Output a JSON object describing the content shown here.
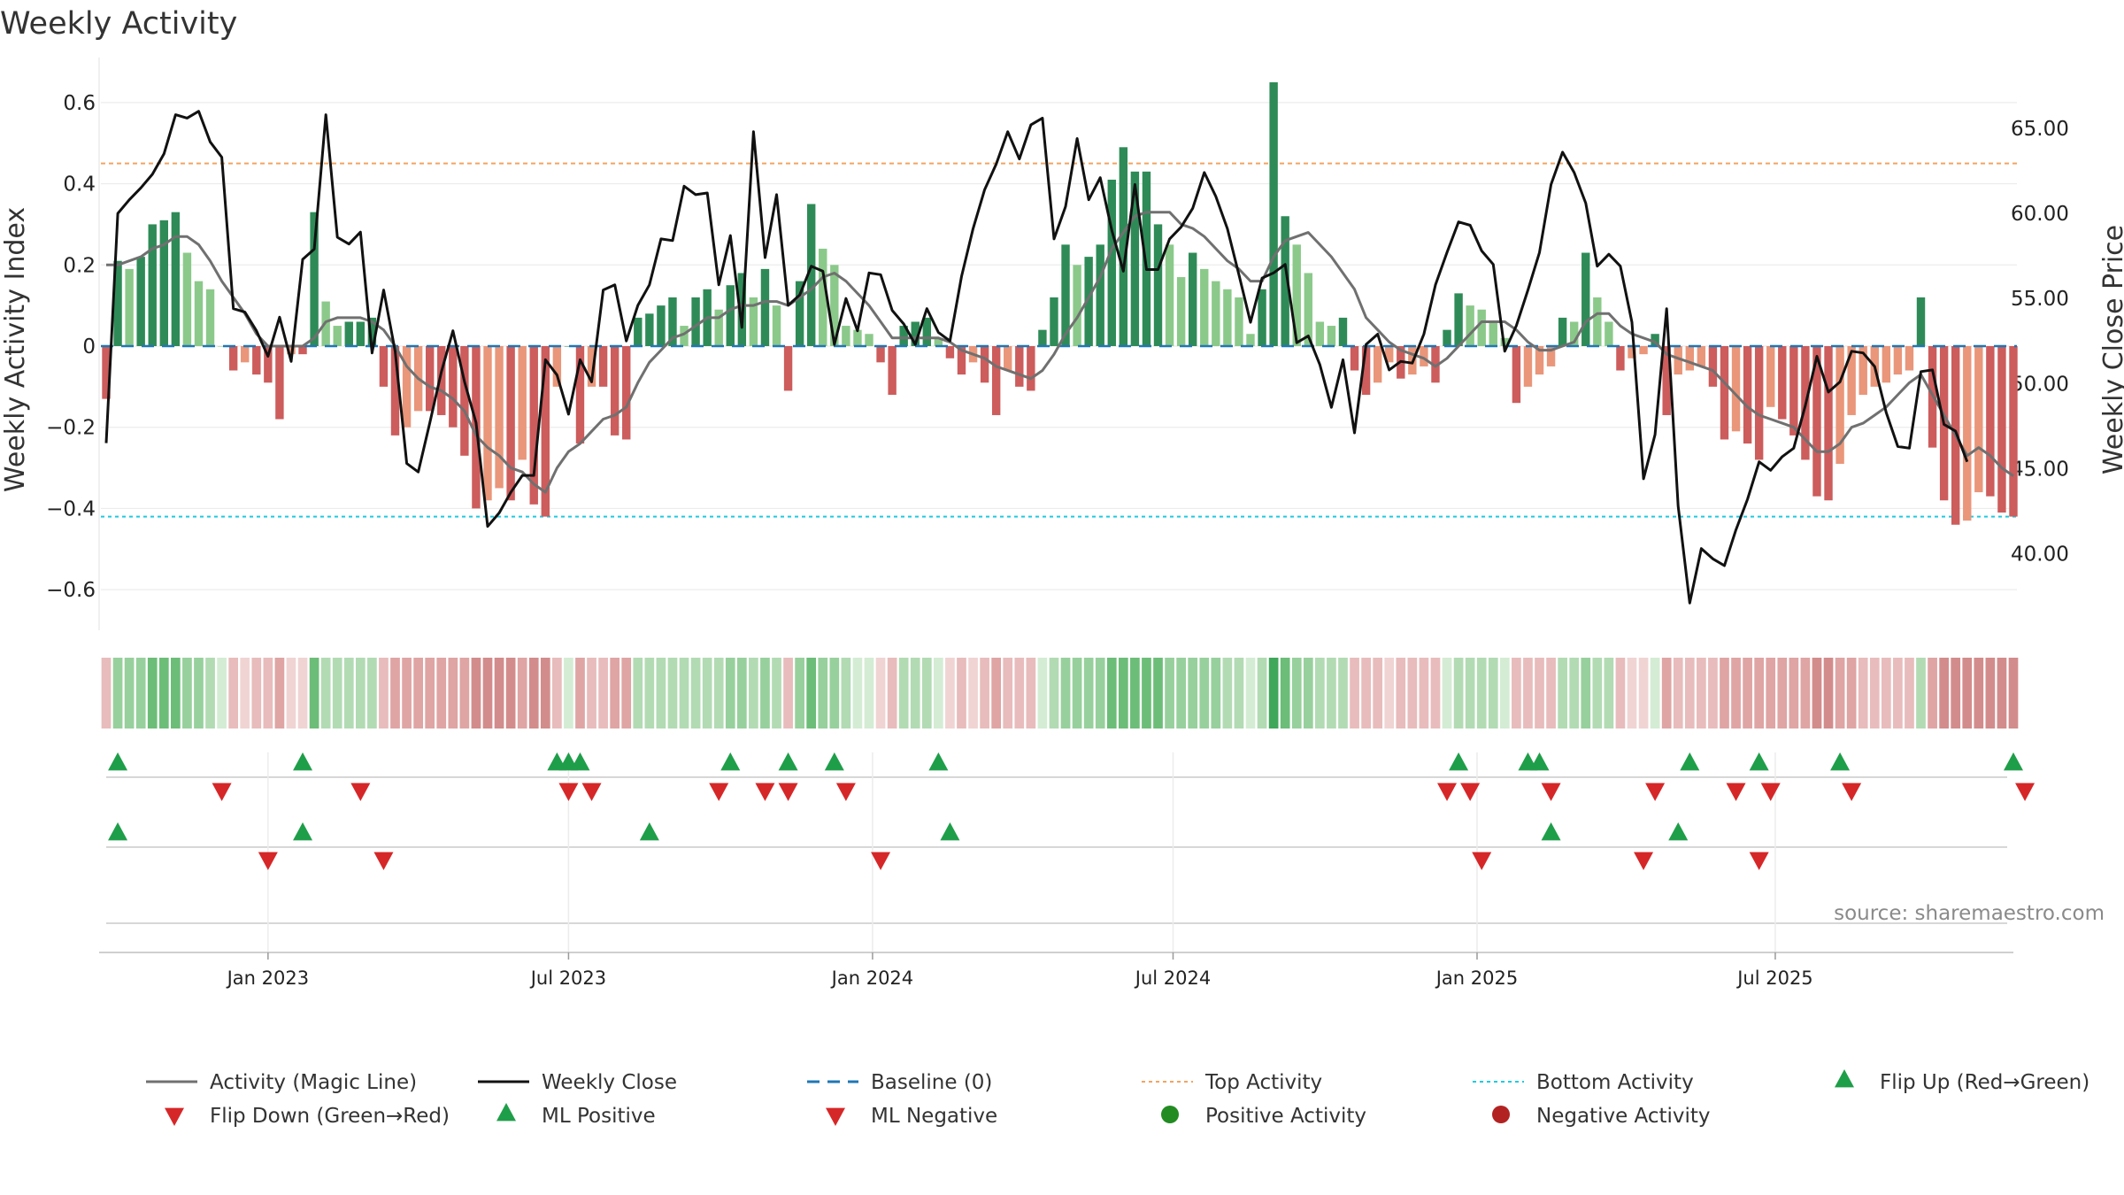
{
  "title": "Weekly Activity",
  "source": "source: sharemaestro.com",
  "colors": {
    "pos_dark": "#2e8b57",
    "pos_mid": "#5aaa5e",
    "pos_light": "#8bc98a",
    "neg_dark": "#cd5c5c",
    "neg_light": "#e9967a",
    "magic": "#707070",
    "close": "#111111",
    "baseline": "#1f77b4",
    "top": "#f4a460",
    "bottom": "#1ecbe1",
    "flip_up": "#1f9e4a",
    "flip_down": "#d62728",
    "pos_dot": "#228b22",
    "neg_dot": "#b22222"
  },
  "chart_data": {
    "type": "bar+line",
    "title": "Weekly Activity",
    "ylabel_left": "Weekly Activity Index",
    "ylabel_right": "Weekly Close Price",
    "ylim_left": [
      -0.7,
      0.7
    ],
    "ylim_right": [
      35.5,
      68.9
    ],
    "yticks_left": [
      0.6,
      0.4,
      0.2,
      0,
      -0.2,
      -0.4,
      -0.6
    ],
    "yticks_left_labels": [
      "0.6",
      "0.4",
      "0.2",
      "0",
      "−0.2",
      "−0.4",
      "−0.6"
    ],
    "yticks_right": [
      65,
      60,
      55,
      50,
      45,
      40
    ],
    "yticks_right_labels": [
      "65.00",
      "60.00",
      "55.00",
      "50.00",
      "45.00",
      "40.00"
    ],
    "x_start": "2022-09-26",
    "x_ticks": [
      {
        "label": "Jan 2023",
        "week": 14
      },
      {
        "label": "Jul 2023",
        "week": 40
      },
      {
        "label": "Jan 2024",
        "week": 66.3
      },
      {
        "label": "Jul 2024",
        "week": 92.3
      },
      {
        "label": "Jan 2025",
        "week": 118.6
      },
      {
        "label": "Jul 2025",
        "week": 144.4
      }
    ],
    "top_activity": 0.45,
    "bottom_activity": -0.42,
    "baseline": 0,
    "activity": [
      -0.13,
      0.21,
      0.19,
      0.22,
      0.3,
      0.31,
      0.33,
      0.23,
      0.16,
      0.14,
      0,
      -0.06,
      -0.04,
      -0.07,
      -0.09,
      -0.18,
      -0.02,
      -0.02,
      0.33,
      0.11,
      0.05,
      0.06,
      0.06,
      0.07,
      -0.1,
      -0.22,
      -0.2,
      -0.16,
      -0.16,
      -0.17,
      -0.2,
      -0.27,
      -0.4,
      -0.38,
      -0.35,
      -0.38,
      -0.28,
      -0.39,
      -0.42,
      -0.1,
      0,
      -0.24,
      -0.1,
      -0.1,
      -0.22,
      -0.23,
      0.07,
      0.08,
      0.1,
      0.12,
      0.05,
      0.12,
      0.14,
      0.09,
      0.15,
      0.18,
      0.12,
      0.19,
      0.1,
      -0.11,
      0.16,
      0.35,
      0.24,
      0.2,
      0.05,
      0.04,
      0.03,
      -0.04,
      -0.12,
      0.05,
      0.06,
      0.07,
      0.02,
      -0.03,
      -0.07,
      -0.04,
      -0.09,
      -0.17,
      -0.06,
      -0.1,
      -0.11,
      0.04,
      0.12,
      0.25,
      0.2,
      0.22,
      0.25,
      0.41,
      0.49,
      0.43,
      0.43,
      0.3,
      0.25,
      0.17,
      0.23,
      0.19,
      0.16,
      0.14,
      0.12,
      0.03,
      0.14,
      0.65,
      0.32,
      0.25,
      0.18,
      0.06,
      0.05,
      0.07,
      -0.06,
      -0.12,
      -0.09,
      -0.04,
      -0.08,
      -0.07,
      -0.05,
      -0.09,
      0.04,
      0.13,
      0.1,
      0.09,
      0.06,
      0.02,
      -0.14,
      -0.1,
      -0.07,
      -0.05,
      0.07,
      0.06,
      0.23,
      0.12,
      0.06,
      -0.06,
      -0.03,
      -0.02,
      0.03,
      -0.17,
      -0.07,
      -0.06,
      -0.05,
      -0.1,
      -0.23,
      -0.21,
      -0.24,
      -0.28,
      -0.15,
      -0.18,
      -0.22,
      -0.28,
      -0.37,
      -0.38,
      -0.29,
      -0.17,
      -0.12,
      -0.1,
      -0.09,
      -0.07,
      -0.06,
      0.12,
      -0.25,
      -0.38,
      -0.44,
      -0.43,
      -0.36,
      -0.37,
      -0.41,
      -0.42
    ],
    "magic_line": [
      0.2,
      0.2,
      0.21,
      0.22,
      0.24,
      0.25,
      0.27,
      0.27,
      0.25,
      0.21,
      0.16,
      0.12,
      0.08,
      0.03,
      0,
      0,
      0,
      0,
      0.02,
      0.06,
      0.07,
      0.07,
      0.07,
      0.06,
      0.04,
      0,
      -0.05,
      -0.08,
      -0.1,
      -0.11,
      -0.13,
      -0.16,
      -0.22,
      -0.25,
      -0.27,
      -0.3,
      -0.31,
      -0.34,
      -0.36,
      -0.3,
      -0.26,
      -0.24,
      -0.21,
      -0.18,
      -0.17,
      -0.15,
      -0.09,
      -0.04,
      -0.01,
      0.02,
      0.03,
      0.05,
      0.07,
      0.07,
      0.09,
      0.1,
      0.1,
      0.11,
      0.11,
      0.1,
      0.12,
      0.14,
      0.17,
      0.18,
      0.16,
      0.13,
      0.1,
      0.06,
      0.02,
      0.02,
      0.02,
      0.02,
      0.02,
      0.01,
      -0.01,
      -0.02,
      -0.03,
      -0.05,
      -0.06,
      -0.07,
      -0.08,
      -0.06,
      -0.02,
      0.03,
      0.07,
      0.12,
      0.17,
      0.24,
      0.28,
      0.32,
      0.33,
      0.33,
      0.33,
      0.3,
      0.29,
      0.27,
      0.24,
      0.21,
      0.19,
      0.16,
      0.16,
      0.22,
      0.26,
      0.27,
      0.28,
      0.25,
      0.22,
      0.18,
      0.14,
      0.07,
      0.04,
      0.01,
      -0.01,
      -0.02,
      -0.03,
      -0.05,
      -0.03,
      0,
      0.03,
      0.06,
      0.06,
      0.06,
      0.04,
      0.01,
      -0.01,
      -0.01,
      0,
      0.01,
      0.06,
      0.08,
      0.08,
      0.05,
      0.03,
      0.02,
      0.01,
      -0.02,
      -0.03,
      -0.04,
      -0.05,
      -0.06,
      -0.09,
      -0.12,
      -0.15,
      -0.17,
      -0.18,
      -0.19,
      -0.2,
      -0.23,
      -0.26,
      -0.26,
      -0.24,
      -0.2,
      -0.19,
      -0.17,
      -0.15,
      -0.12,
      -0.09,
      -0.07,
      -0.12,
      -0.17,
      -0.22,
      -0.27,
      -0.25,
      -0.27,
      -0.3,
      -0.32
    ],
    "weekly_close": [
      46.5,
      60,
      60.8,
      61.5,
      62.3,
      63.5,
      65.8,
      65.6,
      66,
      64.2,
      63.3,
      54.4,
      54.2,
      53.1,
      51.6,
      53.9,
      51.3,
      57.3,
      57.9,
      65.8,
      58.6,
      58.2,
      58.9,
      51.8,
      55.5,
      51.9,
      45.3,
      44.8,
      47.7,
      50.7,
      53.1,
      50.1,
      47.7,
      41.6,
      42.4,
      43.6,
      44.6,
      44.6,
      51.4,
      50.5,
      48.2,
      51.4,
      50.1,
      55.5,
      55.8,
      52.5,
      54.6,
      55.8,
      58.5,
      58.4,
      61.6,
      61.1,
      61.2,
      55.8,
      58.7,
      53.3,
      64.8,
      57.4,
      61.1,
      54.6,
      55.2,
      56.9,
      56.6,
      52.3,
      55,
      53.1,
      56.5,
      56.4,
      54.3,
      53.5,
      52.3,
      54.4,
      53,
      52.5,
      56.3,
      59.1,
      61.4,
      62.9,
      64.8,
      63.2,
      65.2,
      65.6,
      58.5,
      60.4,
      64.4,
      60.8,
      62.1,
      59,
      56.6,
      61.7,
      56.7,
      56.7,
      58.5,
      59.2,
      60.3,
      62.4,
      61,
      59.1,
      56.4,
      53.6,
      56.2,
      56.5,
      57,
      52.4,
      52.8,
      51.1,
      48.6,
      51.4,
      47.1,
      52.3,
      52.9,
      50.8,
      51.3,
      51.2,
      52.9,
      55.8,
      57.7,
      59.5,
      59.3,
      57.8,
      57,
      51.9,
      53.4,
      55.5,
      57.7,
      61.7,
      63.6,
      62.4,
      60.6,
      56.9,
      57.6,
      56.9,
      53.6,
      44.4,
      47,
      54.4,
      42.8,
      37.1,
      40.3,
      39.7,
      39.3,
      41.4,
      43.2,
      45.4,
      44.9,
      45.7,
      46.2,
      48.7,
      51.6,
      49.5,
      50.1,
      51.9,
      51.8,
      51,
      48.3,
      46.3,
      46.2,
      50.7,
      50.8,
      47.6,
      47.2,
      45.4
    ]
  },
  "signals": {
    "flip_up_weeks": [
      1,
      17,
      39,
      40,
      41,
      54,
      59,
      63,
      72,
      117,
      123,
      124,
      137,
      143,
      150,
      165
    ],
    "flip_down_weeks": [
      10,
      22,
      40,
      42,
      53,
      57,
      59,
      64,
      116,
      118,
      125,
      134,
      141,
      144,
      151,
      166
    ],
    "ml_positive_weeks": [
      1,
      17,
      47,
      73,
      125,
      136
    ],
    "ml_negative_weeks": [
      14,
      24,
      67,
      119,
      133,
      143
    ]
  },
  "legend": [
    {
      "label": "Activity (Magic Line)",
      "kind": "line-solid",
      "color_key": "magic"
    },
    {
      "label": "Weekly Close",
      "kind": "line-solid",
      "color_key": "close"
    },
    {
      "label": "Baseline (0)",
      "kind": "line-dash",
      "color_key": "baseline"
    },
    {
      "label": "Top Activity",
      "kind": "line-dot",
      "color_key": "top"
    },
    {
      "label": "Bottom Activity",
      "kind": "line-dot",
      "color_key": "bottom"
    },
    {
      "label": "Flip Up (Red→Green)",
      "kind": "tri-up",
      "color_key": "flip_up"
    },
    {
      "label": "Flip Down (Green→Red)",
      "kind": "tri-down",
      "color_key": "flip_down"
    },
    {
      "label": "ML Positive",
      "kind": "tri-up",
      "color_key": "flip_up"
    },
    {
      "label": "ML Negative",
      "kind": "tri-down",
      "color_key": "flip_down"
    },
    {
      "label": "Positive Activity",
      "kind": "dot",
      "color_key": "pos_dot"
    },
    {
      "label": "Negative Activity",
      "kind": "dot",
      "color_key": "neg_dot"
    }
  ]
}
